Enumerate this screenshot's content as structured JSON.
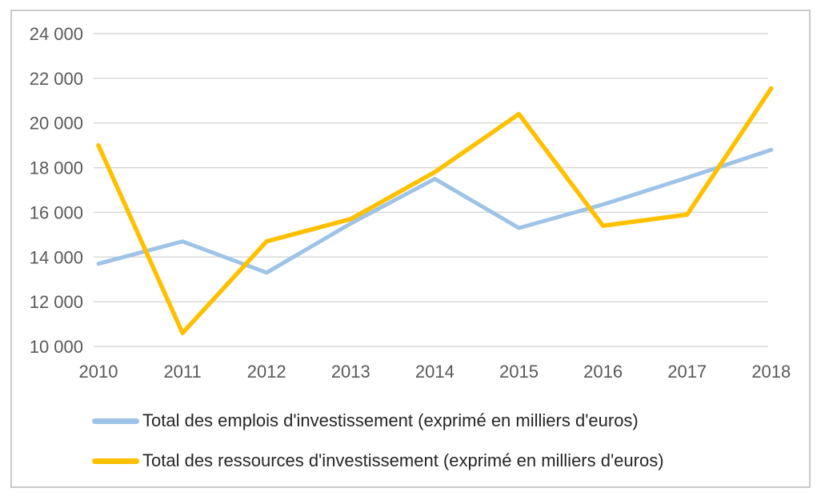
{
  "figure": {
    "background": "#ffffff",
    "border_color": "#c9c9c9",
    "gridline_color": "#d9d9d9",
    "axis_label_color": "#595959",
    "legend_text_color": "#262626"
  },
  "chart_data": {
    "type": "line",
    "title": "",
    "xlabel": "",
    "ylabel": "",
    "x": [
      2010,
      2011,
      2012,
      2013,
      2014,
      2015,
      2016,
      2017,
      2018
    ],
    "series": [
      {
        "name": "Total des emplois d'investissement (exprimé en milliers d'euros)",
        "color": "#9dc3e6",
        "stroke_width": 5,
        "values": [
          13700,
          14700,
          13300,
          15500,
          17500,
          15300,
          16350,
          17550,
          18800
        ]
      },
      {
        "name": "Total des ressources d'investissement (exprimé en milliers d'euros)",
        "color": "#ffc000",
        "stroke_width": 5.5,
        "values": [
          19000,
          10600,
          14700,
          15700,
          17800,
          20400,
          15400,
          15900,
          21550
        ]
      }
    ],
    "ylim": [
      10000,
      24000
    ],
    "ytick_step": 2000,
    "y_tick_values": [
      24000,
      22000,
      20000,
      18000,
      16000,
      14000,
      12000,
      10000
    ],
    "y_tick_labels": [
      "24 000",
      "22 000",
      "20 000",
      "18 000",
      "16 000",
      "14 000",
      "12 000",
      "10 000"
    ],
    "x_tick_labels": [
      "2010",
      "2011",
      "2012",
      "2013",
      "2014",
      "2015",
      "2016",
      "2017",
      "2018"
    ],
    "grid": true,
    "legend_position": "bottom-left"
  }
}
